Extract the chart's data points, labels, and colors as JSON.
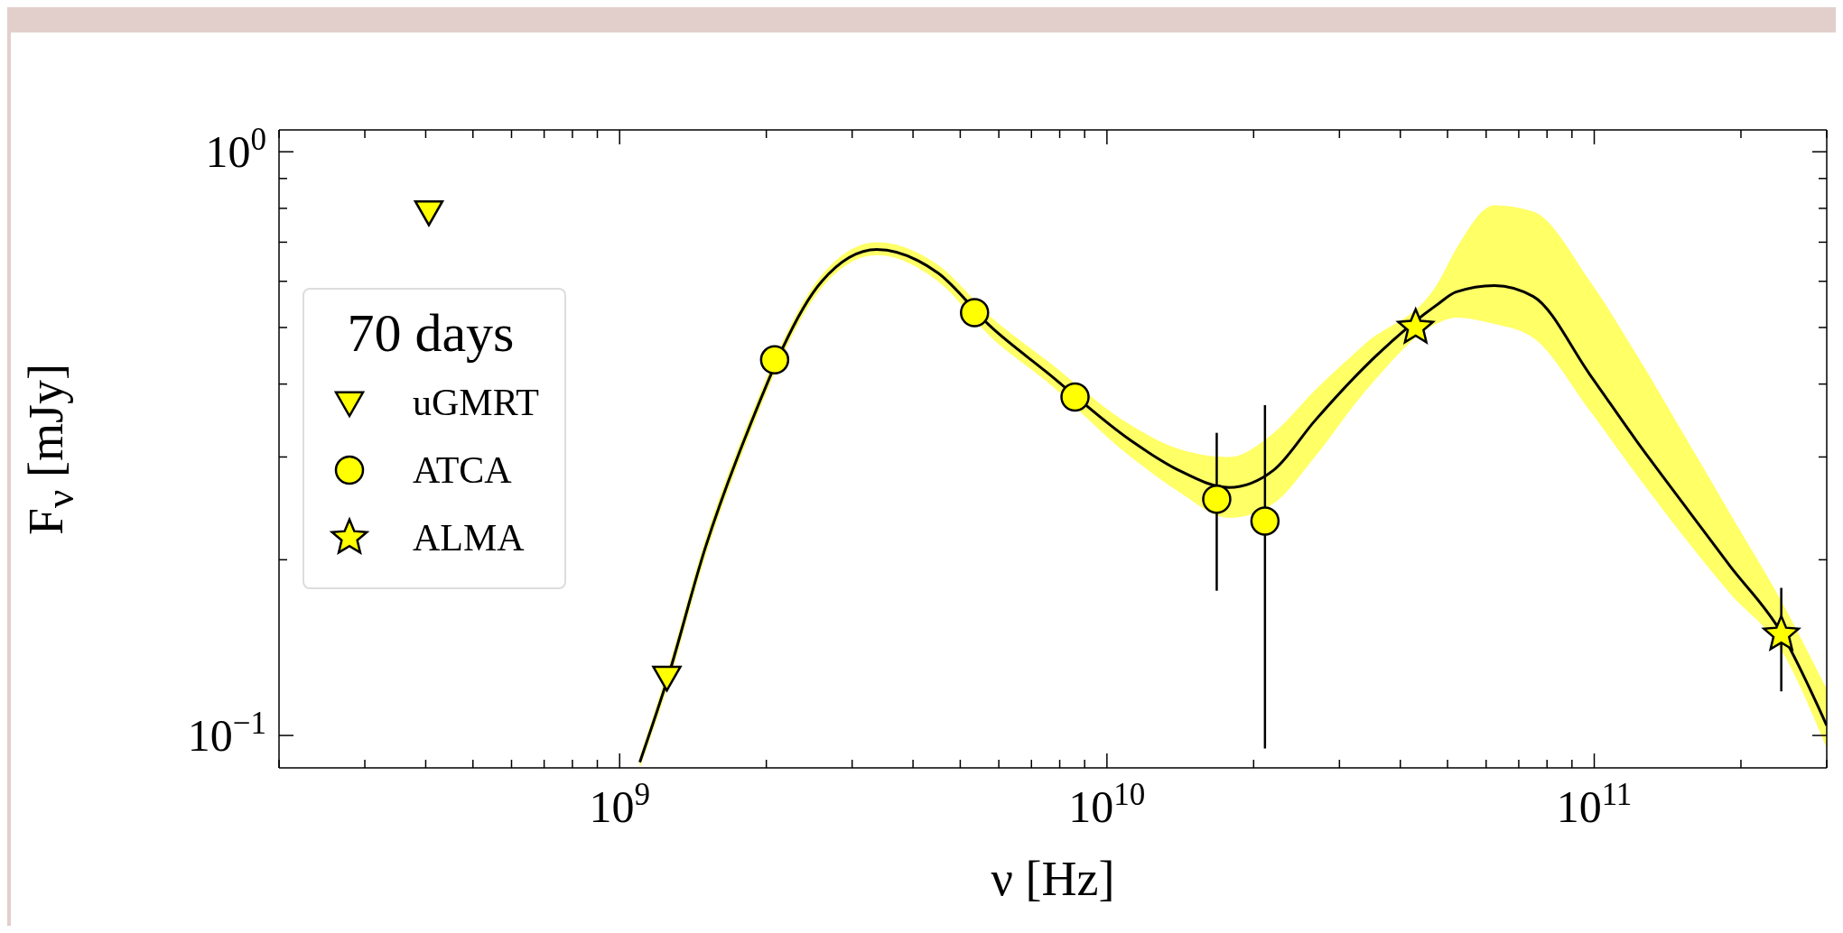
{
  "chart_data": {
    "type": "scatter",
    "xlabel": "ν [Hz]",
    "ylabel": "F$_{ν}$ [mJy]",
    "legend_title": "70 days",
    "log": "xy",
    "legend": "left",
    "xlim": [
      200000000.0,
      300000000000.0
    ],
    "xticks": [
      {
        "value": 200000000.0,
        "label": null
      },
      {
        "value": 300000000.0,
        "label": null
      },
      {
        "value": 400000000.0,
        "label": null
      },
      {
        "value": 500000000.0,
        "label": null
      },
      {
        "value": 600000000.0,
        "label": null
      },
      {
        "value": 700000000.0,
        "label": null
      },
      {
        "value": 800000000.0,
        "label": null
      },
      {
        "value": 900000000.0,
        "label": null
      },
      {
        "value": 1000000000.0,
        "label": "10$^{9}$"
      },
      {
        "value": 2000000000.0,
        "label": null
      },
      {
        "value": 3000000000.0,
        "label": null
      },
      {
        "value": 4000000000.0,
        "label": null
      },
      {
        "value": 5000000000.0,
        "label": null
      },
      {
        "value": 6000000000.0,
        "label": null
      },
      {
        "value": 7000000000.0,
        "label": null
      },
      {
        "value": 8000000000.0,
        "label": null
      },
      {
        "value": 9000000000.0,
        "label": null
      },
      {
        "value": 10000000000.0,
        "label": "10$^{10}$"
      },
      {
        "value": 20000000000.0,
        "label": null
      },
      {
        "value": 30000000000.0,
        "label": null
      },
      {
        "value": 40000000000.0,
        "label": null
      },
      {
        "value": 50000000000.0,
        "label": null
      },
      {
        "value": 60000000000.0,
        "label": null
      },
      {
        "value": 70000000000.0,
        "label": null
      },
      {
        "value": 80000000000.0,
        "label": null
      },
      {
        "value": 90000000000.0,
        "label": null
      },
      {
        "value": 100000000000.0,
        "label": "10$^{11}$"
      },
      {
        "value": 200000000000.0,
        "label": null
      },
      {
        "value": 300000000000.0,
        "label": null
      }
    ],
    "ylim": [
      0.088,
      1.09
    ],
    "yticks": [
      {
        "value": 0.1,
        "label": "10$^{−1}$"
      },
      {
        "value": 0.2,
        "label": null
      },
      {
        "value": 0.3,
        "label": null
      },
      {
        "value": 0.4,
        "label": null
      },
      {
        "value": 0.5,
        "label": null
      },
      {
        "value": 0.6,
        "label": null
      },
      {
        "value": 0.7,
        "label": null
      },
      {
        "value": 0.8,
        "label": null
      },
      {
        "value": 0.9,
        "label": null
      },
      {
        "value": 1,
        "label": "10$^{0}$"
      }
    ],
    "series": [
      {
        "type": "line",
        "color": "#000000",
        "marker": "none",
        "line_style": "solid",
        "x": [
          1100000000.0,
          1250000000.0,
          1500000000.0,
          1800000000.0,
          2600000000.0,
          3370000000.0,
          4500000000.0,
          5800000000.0,
          7500000000.0,
          11200000000.0,
          14000000000.0,
          17800000000.0,
          22000000000.0,
          26700000000.0,
          34000000000.0,
          48000000000.0,
          52000000000.0,
          62400000000.0,
          75000000000.0,
          98000000000.0,
          122000000000.0,
          152000000000.0,
          190000000000.0,
          242000000000.0,
          300000000000.0
        ],
        "values": [
          0.09,
          0.124,
          0.21,
          0.32,
          0.6,
          0.68,
          0.62,
          0.5,
          0.42,
          0.32,
          0.285,
          0.266,
          0.285,
          0.346,
          0.43,
          0.55,
          0.575,
          0.59,
          0.565,
          0.415,
          0.32,
          0.25,
          0.195,
          0.15,
          0.104
        ],
        "lower": [
          0.088,
          0.12,
          0.203,
          0.31,
          0.585,
          0.665,
          0.6,
          0.48,
          0.405,
          0.3,
          0.262,
          0.236,
          0.25,
          0.3,
          0.39,
          0.51,
          0.52,
          0.507,
          0.48,
          0.36,
          0.28,
          0.22,
          0.175,
          0.14,
          0.095
        ],
        "upper": [
          0.092,
          0.128,
          0.217,
          0.33,
          0.615,
          0.7,
          0.64,
          0.52,
          0.44,
          0.34,
          0.31,
          0.3,
          0.33,
          0.39,
          0.47,
          0.6,
          0.68,
          0.81,
          0.79,
          0.6,
          0.45,
          0.33,
          0.24,
          0.17,
          0.12
        ]
      },
      {
        "name": "uGMRT",
        "marker": "triangle",
        "color": "#ffff00",
        "x": [
          406000000.0,
          1250000000.0
        ],
        "values": [
          0.79,
          0.126
        ]
      },
      {
        "name": "ATCA",
        "marker": "circle",
        "color": "#ffff00",
        "x": [
          2080000000.0,
          5350000000.0,
          8600000000.0,
          16800000000.0,
          21100000000.0
        ],
        "values": [
          0.44,
          0.53,
          0.38,
          0.254,
          0.233
        ],
        "errors": [
          null,
          null,
          null,
          [
            0.177,
            0.33
          ],
          [
            0.095,
            0.368
          ]
        ]
      },
      {
        "name": "ALMA",
        "marker": "star",
        "color": "#ffff00",
        "x": [
          43000000000.0,
          242000000000.0
        ],
        "values": [
          0.5,
          0.149
        ],
        "errors": [
          null,
          [
            0.119,
            0.179
          ]
        ]
      }
    ]
  }
}
